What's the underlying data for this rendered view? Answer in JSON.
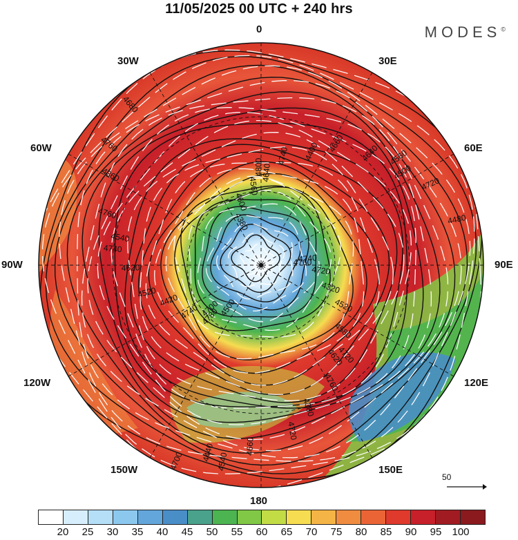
{
  "title": "11/05/2025  00 UTC  + 240 hrs",
  "brand": "MODES",
  "brand_mark": "©",
  "longitude_labels": {
    "top": "0",
    "bottom": "180",
    "left": "90W",
    "right": "90E",
    "nw30": "30W",
    "ne30": "30E",
    "nw60": "60W",
    "ne60": "60E",
    "sw120": "120W",
    "se120": "120E",
    "sw150": "150W",
    "se150": "150E"
  },
  "reference_vector": {
    "label": "50"
  },
  "contour_labels": [
    "4760",
    "4700",
    "4640",
    "4620",
    "4540",
    "4500",
    "4440",
    "4380",
    "4320",
    "4420",
    "4400",
    "4380",
    "4360",
    "4480",
    "4500",
    "4560",
    "4580",
    "4620",
    "4640",
    "4660",
    "4680",
    "4720",
    "4740",
    "4740",
    "4760",
    "4760",
    "4720",
    "4700",
    "4600",
    "4520",
    "4520",
    "4660",
    "4720",
    "4760",
    "4740",
    "4780",
    "4800",
    "4720",
    "4740",
    "4560",
    "4540"
  ],
  "colorbar": {
    "ticks": [
      "20",
      "25",
      "30",
      "35",
      "40",
      "45",
      "50",
      "55",
      "60",
      "65",
      "70",
      "75",
      "80",
      "85",
      "90",
      "95",
      "100"
    ],
    "colors": [
      "#ffffff",
      "#d7eefc",
      "#b4dff7",
      "#8cc8ee",
      "#63a6db",
      "#4a8ec8",
      "#4aa28c",
      "#4cb450",
      "#80c846",
      "#c2dc46",
      "#f6dc50",
      "#f5b446",
      "#f08c40",
      "#ea6436",
      "#df3a2c",
      "#c8202a",
      "#a01c22",
      "#8a1a1e"
    ]
  }
}
